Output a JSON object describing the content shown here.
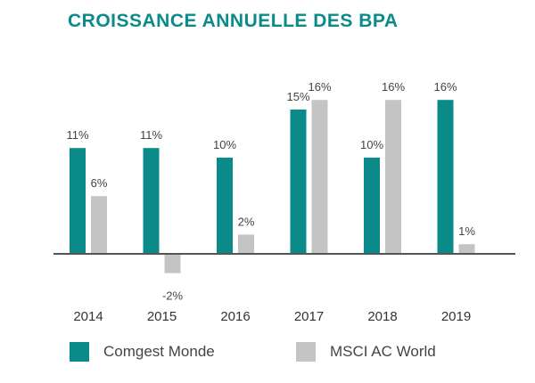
{
  "colors": {
    "title": "#0b8a8a",
    "series_a": "#0b8a8a",
    "series_b": "#c4c4c4",
    "axis": "#555555"
  },
  "chart_data": {
    "type": "bar",
    "title": "CROISSANCE ANNUELLE DES BPA",
    "categories": [
      "2014",
      "2015",
      "2016",
      "2017",
      "2018",
      "2019"
    ],
    "series": [
      {
        "name": "Comgest Monde",
        "values": [
          11,
          11,
          10,
          15,
          10,
          16
        ],
        "labels": [
          "11%",
          "11%",
          "10%",
          "15%",
          "10%",
          "16%"
        ]
      },
      {
        "name": "MSCI AC World",
        "values": [
          6,
          -2,
          2,
          16,
          16,
          1
        ],
        "labels": [
          "6%",
          "-2%",
          "2%",
          "16%",
          "16%",
          "1%"
        ]
      }
    ],
    "ylim": [
      -3,
      17
    ],
    "grid": false,
    "legend_position": "bottom"
  }
}
